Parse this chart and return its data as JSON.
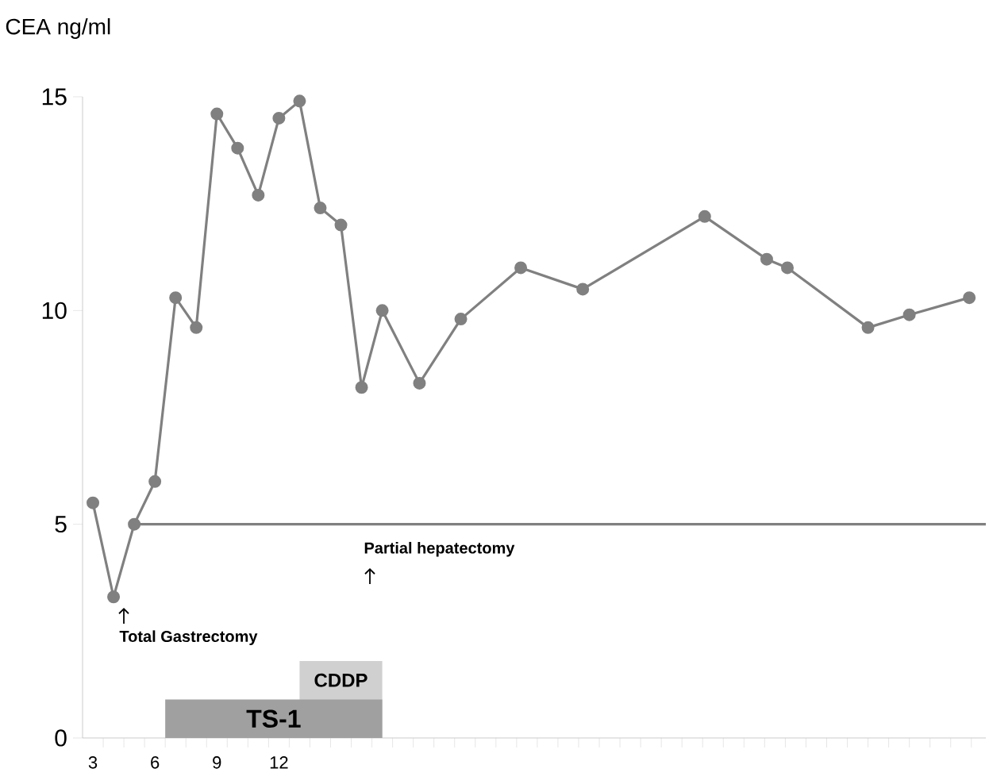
{
  "chart_data": {
    "type": "line",
    "ylabel": "CEA   ng/ml",
    "xlim": [
      2.5,
      46.2
    ],
    "ylim": [
      0,
      15
    ],
    "xticks": [
      3,
      6,
      9,
      12,
      {
        "value": 3.5,
        "label": null
      },
      {
        "value": 4.5,
        "label": null
      },
      {
        "value": 5.5,
        "label": null
      },
      {
        "value": 6.5,
        "label": null
      },
      {
        "value": 7.5,
        "label": null
      },
      {
        "value": 8.5,
        "label": null
      },
      {
        "value": 9.5,
        "label": null
      },
      {
        "value": 10.5,
        "label": null
      },
      {
        "value": 11.5,
        "label": null
      },
      {
        "value": 12.5,
        "label": null
      },
      {
        "value": 13.5,
        "label": null
      },
      {
        "value": 14.5,
        "label": null
      },
      {
        "value": 15.5,
        "label": null
      },
      {
        "value": 16.5,
        "label": null
      },
      {
        "value": 17.5,
        "label": null
      },
      {
        "value": 18.5,
        "label": null
      },
      {
        "value": 19.5,
        "label": null
      },
      {
        "value": 20.5,
        "label": null
      },
      {
        "value": 21.5,
        "label": null
      },
      {
        "value": 22.5,
        "label": null
      },
      {
        "value": 23.5,
        "label": null
      },
      {
        "value": 24.5,
        "label": null
      },
      {
        "value": 25.5,
        "label": null
      },
      {
        "value": 26.5,
        "label": null
      },
      {
        "value": 27.5,
        "label": null
      },
      {
        "value": 28.5,
        "label": null
      },
      {
        "value": 29.5,
        "label": null
      },
      {
        "value": 30.5,
        "label": null
      },
      {
        "value": 31.5,
        "label": null
      },
      {
        "value": 32.5,
        "label": null
      },
      {
        "value": 33.5,
        "label": null
      },
      {
        "value": 34.5,
        "label": null
      },
      {
        "value": 35.5,
        "label": null
      },
      {
        "value": 36.5,
        "label": null
      },
      {
        "value": 37.5,
        "label": null
      },
      {
        "value": 38.5,
        "label": null
      },
      {
        "value": 39.5,
        "label": null
      },
      {
        "value": 40.5,
        "label": null
      },
      {
        "value": 41.5,
        "label": null
      },
      {
        "value": 42.5,
        "label": null
      },
      {
        "value": 43.5,
        "label": null
      },
      {
        "value": 44.5,
        "label": null
      },
      {
        "value": 45.5,
        "label": null
      }
    ],
    "yticks": [
      0,
      5,
      10,
      15
    ],
    "series": [
      {
        "color": "#808080",
        "marker": "circle",
        "x": [
          3,
          4,
          5,
          6,
          7,
          8,
          9,
          10,
          11,
          12,
          13,
          14,
          15,
          16,
          17,
          18.8,
          20.8,
          23.7,
          26.7,
          32.6,
          35.6,
          36.6,
          40.5,
          42.5,
          45.4
        ],
        "values": [
          5.5,
          3.3,
          5.0,
          6.0,
          10.3,
          9.6,
          14.6,
          13.8,
          12.7,
          14.5,
          14.9,
          12.4,
          12.0,
          8.2,
          10.0,
          8.3,
          9.8,
          11.0,
          10.5,
          12.2,
          11.2,
          11.0,
          9.6,
          9.9,
          10.3
        ]
      },
      {
        "type": "line",
        "color": "#808080",
        "marker": "none",
        "x": [
          5,
          46.2
        ],
        "values": [
          5,
          5
        ]
      },
      {
        "type": "area",
        "name": "CDDP",
        "color": "#d0d0d0",
        "x": [
          13,
          17
        ],
        "values": [
          1.8,
          1.8
        ]
      },
      {
        "type": "area",
        "name": "TS-1",
        "color": "#a0a0a0",
        "x": [
          6.5,
          17
        ],
        "values": [
          0.9,
          0.9
        ]
      }
    ],
    "annotations": [
      "Total Gastrectomy",
      "Partial hepatectomy"
    ]
  }
}
